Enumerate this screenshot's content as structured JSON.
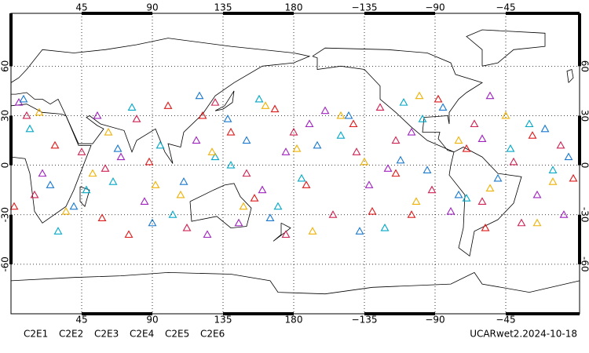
{
  "chart_data": {
    "type": "scatter",
    "caption": "UCARwet2.2024-10-18",
    "xlim": [
      0,
      362
    ],
    "ylim": [
      -90,
      92
    ],
    "xticks": [
      45,
      90,
      135,
      180,
      {
        "value": 225,
        "label": "−135"
      },
      {
        "value": 270,
        "label": "−90"
      },
      {
        "value": 315,
        "label": "−45"
      }
    ],
    "yticks": [
      -60,
      -30,
      0,
      30,
      60
    ],
    "grid": true,
    "series": [
      {
        "name": "C2E1",
        "color": "#00a8c8",
        "x": [
          12,
          48,
          77,
          103,
          130,
          158,
          185,
          210,
          238,
          262,
          290,
          318,
          345,
          30,
          95,
          170,
          250,
          330,
          65,
          140
        ],
        "y": [
          22,
          -15,
          35,
          -30,
          5,
          40,
          -8,
          18,
          -38,
          28,
          -20,
          10,
          -3,
          -40,
          12,
          -25,
          38,
          25,
          -10,
          0
        ]
      },
      {
        "name": "C2E2",
        "color": "#a020c0",
        "x": [
          20,
          55,
          85,
          118,
          145,
          175,
          200,
          228,
          255,
          280,
          305,
          335,
          5,
          70,
          125,
          190,
          240,
          300,
          352,
          160
        ],
        "y": [
          -5,
          30,
          -22,
          15,
          -35,
          8,
          33,
          -12,
          20,
          -28,
          42,
          -18,
          38,
          5,
          -42,
          25,
          -2,
          16,
          -30,
          -15
        ]
      },
      {
        "name": "C2E3",
        "color": "#1878d0",
        "x": [
          8,
          40,
          68,
          110,
          138,
          165,
          195,
          222,
          248,
          275,
          310,
          340,
          90,
          150,
          215,
          285,
          355,
          25,
          120,
          265
        ],
        "y": [
          40,
          -25,
          10,
          -10,
          28,
          -32,
          12,
          -40,
          3,
          35,
          -8,
          22,
          -35,
          15,
          30,
          -18,
          5,
          -12,
          42,
          -3
        ]
      },
      {
        "name": "C2E4",
        "color": "#d02050",
        "x": [
          15,
          45,
          80,
          112,
          150,
          180,
          205,
          235,
          268,
          295,
          325,
          350,
          60,
          130,
          220,
          300,
          10,
          175,
          245,
          320
        ],
        "y": [
          -18,
          8,
          28,
          -38,
          -5,
          20,
          -30,
          35,
          -15,
          25,
          -35,
          12,
          -2,
          38,
          8,
          -22,
          30,
          -42,
          15,
          2
        ]
      },
      {
        "name": "C2E5",
        "color": "#e01818",
        "x": [
          28,
          58,
          88,
          122,
          155,
          188,
          218,
          245,
          272,
          302,
          332,
          2,
          100,
          168,
          230,
          290,
          358,
          75,
          140,
          255
        ],
        "y": [
          12,
          -32,
          2,
          30,
          -20,
          -12,
          25,
          -5,
          40,
          -38,
          18,
          -25,
          36,
          34,
          -28,
          10,
          -8,
          -42,
          20,
          -30
        ]
      },
      {
        "name": "C2E6",
        "color": "#f0b000",
        "x": [
          35,
          62,
          92,
          128,
          162,
          192,
          225,
          258,
          285,
          315,
          345,
          18,
          108,
          182,
          260,
          335,
          52,
          148,
          210,
          305
        ],
        "y": [
          -28,
          20,
          -12,
          8,
          36,
          -40,
          2,
          -22,
          15,
          30,
          -10,
          32,
          -18,
          10,
          42,
          -35,
          -5,
          -25,
          30,
          -14
        ]
      }
    ]
  }
}
